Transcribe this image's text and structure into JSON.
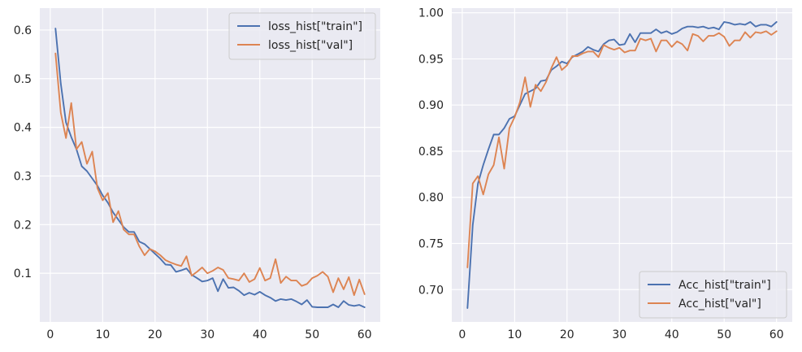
{
  "chart_data": [
    {
      "type": "line",
      "title": "",
      "xlabel": "",
      "ylabel": "",
      "xlim": [
        -2.0,
        63.0
      ],
      "ylim": [
        0.0,
        0.645
      ],
      "xticks": [
        0,
        10,
        20,
        30,
        40,
        50,
        60
      ],
      "yticks": [
        0.1,
        0.2,
        0.3,
        0.4,
        0.5,
        0.6
      ],
      "ytick_labels": [
        "0.1",
        "0.2",
        "0.3",
        "0.4",
        "0.5",
        "0.6"
      ],
      "grid": true,
      "legend_position": "top-right",
      "x": [
        1,
        2,
        3,
        4,
        5,
        6,
        7,
        8,
        9,
        10,
        11,
        12,
        13,
        14,
        15,
        16,
        17,
        18,
        19,
        20,
        21,
        22,
        23,
        24,
        25,
        26,
        27,
        28,
        29,
        30,
        31,
        32,
        33,
        34,
        35,
        36,
        37,
        38,
        39,
        40,
        41,
        42,
        43,
        44,
        45,
        46,
        47,
        48,
        49,
        50,
        51,
        52,
        53,
        54,
        55,
        56,
        57,
        58,
        59,
        60
      ],
      "series": [
        {
          "name": "loss_hist[\"train\"]",
          "color": "#4c72b0",
          "values": [
            0.603,
            0.49,
            0.41,
            0.38,
            0.355,
            0.32,
            0.31,
            0.295,
            0.28,
            0.26,
            0.245,
            0.225,
            0.21,
            0.195,
            0.185,
            0.185,
            0.165,
            0.16,
            0.15,
            0.14,
            0.13,
            0.118,
            0.117,
            0.103,
            0.106,
            0.11,
            0.097,
            0.09,
            0.083,
            0.085,
            0.09,
            0.063,
            0.088,
            0.07,
            0.071,
            0.064,
            0.055,
            0.06,
            0.056,
            0.062,
            0.055,
            0.05,
            0.043,
            0.047,
            0.045,
            0.047,
            0.042,
            0.036,
            0.045,
            0.031,
            0.03,
            0.03,
            0.03,
            0.036,
            0.03,
            0.043,
            0.035,
            0.033,
            0.035,
            0.03
          ]
        },
        {
          "name": "loss_hist[\"val\"]",
          "color": "#dd8452",
          "values": [
            0.552,
            0.43,
            0.378,
            0.45,
            0.355,
            0.37,
            0.325,
            0.35,
            0.275,
            0.25,
            0.265,
            0.205,
            0.228,
            0.19,
            0.18,
            0.18,
            0.155,
            0.137,
            0.15,
            0.145,
            0.137,
            0.127,
            0.122,
            0.118,
            0.115,
            0.135,
            0.095,
            0.103,
            0.112,
            0.1,
            0.105,
            0.112,
            0.107,
            0.09,
            0.088,
            0.085,
            0.1,
            0.082,
            0.088,
            0.111,
            0.085,
            0.09,
            0.129,
            0.08,
            0.093,
            0.085,
            0.085,
            0.074,
            0.078,
            0.09,
            0.095,
            0.103,
            0.093,
            0.061,
            0.09,
            0.067,
            0.092,
            0.055,
            0.087,
            0.057
          ]
        }
      ]
    },
    {
      "type": "line",
      "title": "",
      "xlabel": "",
      "ylabel": "",
      "xlim": [
        -2.0,
        63.0
      ],
      "ylim": [
        0.665,
        1.005
      ],
      "xticks": [
        0,
        10,
        20,
        30,
        40,
        50,
        60
      ],
      "yticks": [
        0.7,
        0.75,
        0.8,
        0.85,
        0.9,
        0.95,
        1.0
      ],
      "ytick_labels": [
        "0.70",
        "0.75",
        "0.80",
        "0.85",
        "0.90",
        "0.95",
        "1.00"
      ],
      "grid": true,
      "legend_position": "bottom-right",
      "x": [
        1,
        2,
        3,
        4,
        5,
        6,
        7,
        8,
        9,
        10,
        11,
        12,
        13,
        14,
        15,
        16,
        17,
        18,
        19,
        20,
        21,
        22,
        23,
        24,
        25,
        26,
        27,
        28,
        29,
        30,
        31,
        32,
        33,
        34,
        35,
        36,
        37,
        38,
        39,
        40,
        41,
        42,
        43,
        44,
        45,
        46,
        47,
        48,
        49,
        50,
        51,
        52,
        53,
        54,
        55,
        56,
        57,
        58,
        59,
        60
      ],
      "series": [
        {
          "name": "Acc_hist[\"train\"]",
          "color": "#4c72b0",
          "values": [
            0.68,
            0.77,
            0.815,
            0.835,
            0.852,
            0.868,
            0.868,
            0.875,
            0.885,
            0.888,
            0.9,
            0.912,
            0.915,
            0.918,
            0.926,
            0.927,
            0.938,
            0.942,
            0.947,
            0.945,
            0.952,
            0.955,
            0.958,
            0.963,
            0.96,
            0.958,
            0.966,
            0.97,
            0.971,
            0.965,
            0.966,
            0.977,
            0.968,
            0.978,
            0.978,
            0.978,
            0.982,
            0.978,
            0.98,
            0.977,
            0.979,
            0.983,
            0.985,
            0.985,
            0.984,
            0.985,
            0.983,
            0.984,
            0.982,
            0.99,
            0.989,
            0.987,
            0.988,
            0.987,
            0.99,
            0.985,
            0.987,
            0.987,
            0.985,
            0.99
          ]
        },
        {
          "name": "Acc_hist[\"val\"]",
          "color": "#dd8452",
          "values": [
            0.724,
            0.815,
            0.823,
            0.803,
            0.825,
            0.835,
            0.865,
            0.831,
            0.875,
            0.887,
            0.903,
            0.93,
            0.898,
            0.922,
            0.915,
            0.925,
            0.94,
            0.952,
            0.938,
            0.943,
            0.953,
            0.953,
            0.956,
            0.958,
            0.958,
            0.952,
            0.965,
            0.962,
            0.96,
            0.962,
            0.957,
            0.959,
            0.959,
            0.972,
            0.97,
            0.972,
            0.958,
            0.97,
            0.97,
            0.963,
            0.969,
            0.966,
            0.959,
            0.977,
            0.975,
            0.969,
            0.975,
            0.975,
            0.978,
            0.974,
            0.964,
            0.97,
            0.97,
            0.979,
            0.973,
            0.979,
            0.978,
            0.98,
            0.976,
            0.98
          ]
        }
      ]
    }
  ]
}
